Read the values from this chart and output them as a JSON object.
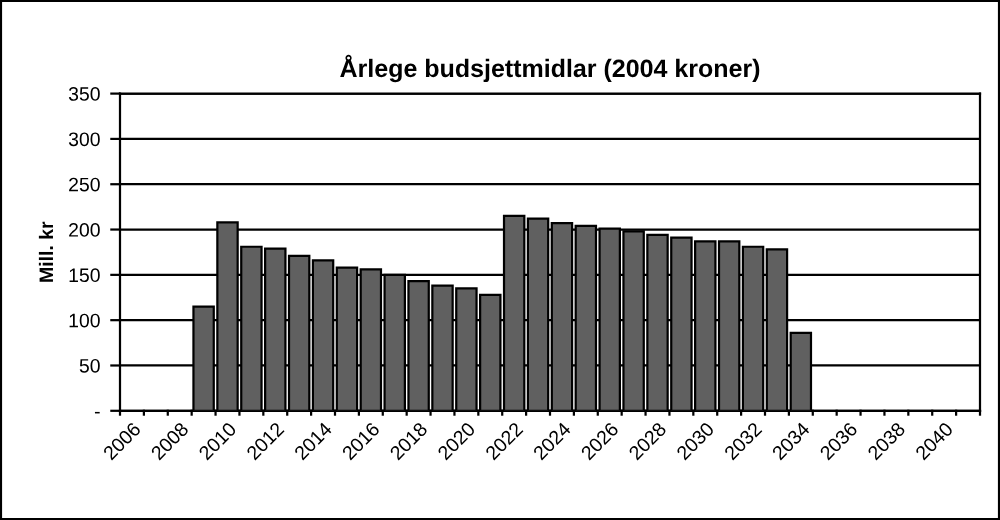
{
  "chart_data": {
    "type": "bar",
    "title": "Årlege budsjettmidlar (2004 kroner)",
    "ylabel": "Mill. kr",
    "categories": [
      "2006",
      null,
      "2008",
      null,
      "2010",
      null,
      "2012",
      null,
      "2014",
      null,
      "2016",
      null,
      "2018",
      null,
      "2020",
      null,
      "2022",
      null,
      "2024",
      null,
      "2026",
      null,
      "2028",
      null,
      "2030",
      null,
      "2032",
      null,
      "2034",
      null,
      "2036",
      null,
      "2038",
      null,
      "2040",
      null
    ],
    "values": [
      null,
      null,
      null,
      115,
      208,
      181,
      179,
      171,
      166,
      158,
      156,
      150,
      143,
      138,
      135,
      128,
      215,
      212,
      207,
      204,
      201,
      198,
      194,
      191,
      187,
      187,
      181,
      178,
      86,
      null,
      null,
      null,
      null,
      null,
      null,
      null
    ],
    "color": "#606060",
    "ylim": [
      0,
      350
    ],
    "yticks": [
      {
        "value": 0,
        "label": "-"
      },
      50,
      100,
      150,
      200,
      250,
      300,
      350
    ],
    "grid": "y"
  }
}
